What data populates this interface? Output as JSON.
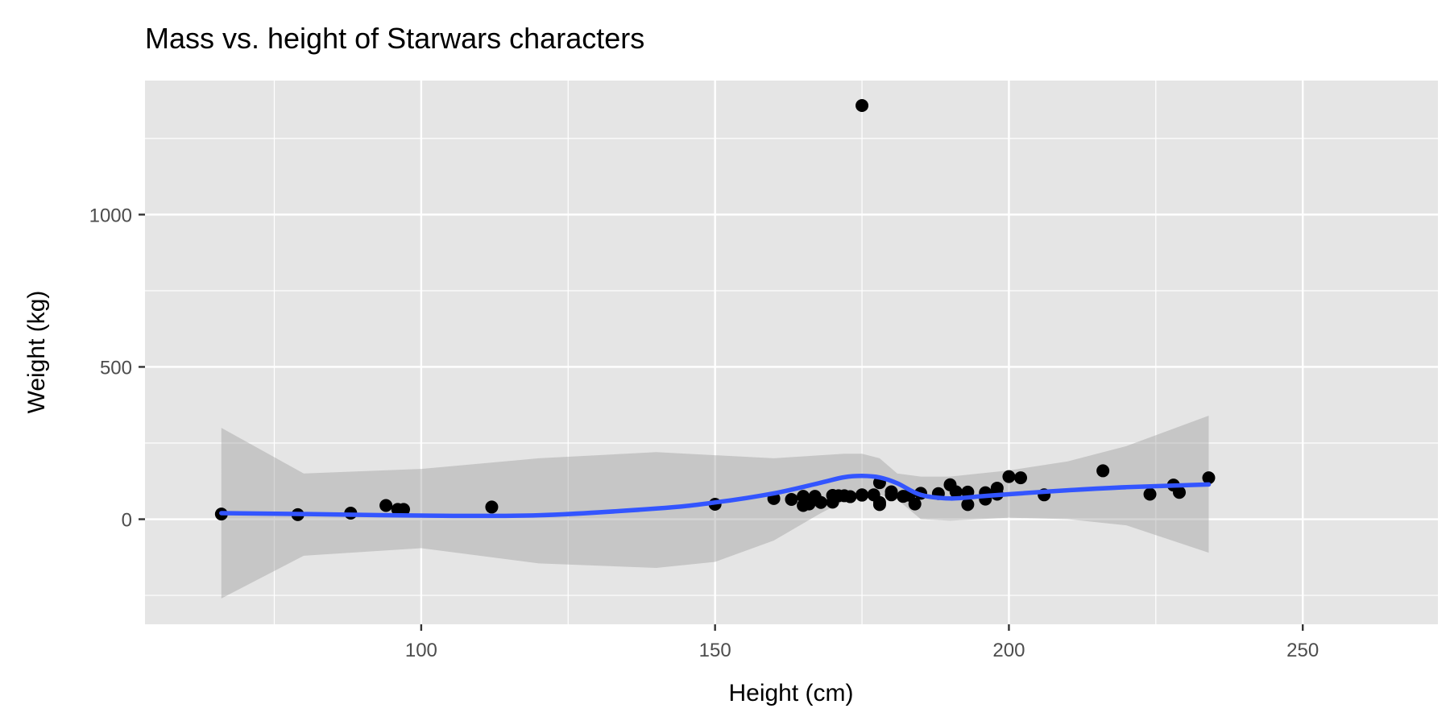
{
  "chart_data": {
    "type": "scatter",
    "title": "Mass vs. height of Starwars characters",
    "xlabel": "Height (cm)",
    "ylabel": "Weight (kg)",
    "xlim": [
      53,
      273
    ],
    "ylim": [
      -345,
      1440
    ],
    "x_ticks": [
      100,
      150,
      200,
      250
    ],
    "x_minor": [
      75,
      125,
      175,
      225
    ],
    "y_ticks": [
      0,
      500,
      1000
    ],
    "y_minor": [
      -250,
      250,
      750,
      1250
    ],
    "grid": true,
    "legend": "none",
    "colors": {
      "panel": "#e5e5e5",
      "grid": "#ffffff",
      "point": "#000000",
      "smooth": "#3355ff",
      "ribbon": "#999999"
    },
    "points": [
      {
        "x": 66,
        "y": 17
      },
      {
        "x": 79,
        "y": 15
      },
      {
        "x": 88,
        "y": 20
      },
      {
        "x": 94,
        "y": 45
      },
      {
        "x": 96,
        "y": 32
      },
      {
        "x": 97,
        "y": 32
      },
      {
        "x": 112,
        "y": 40
      },
      {
        "x": 150,
        "y": 49
      },
      {
        "x": 160,
        "y": 68
      },
      {
        "x": 163,
        "y": 65
      },
      {
        "x": 165,
        "y": 75
      },
      {
        "x": 165,
        "y": 45
      },
      {
        "x": 166,
        "y": 50
      },
      {
        "x": 167,
        "y": 75
      },
      {
        "x": 168,
        "y": 55
      },
      {
        "x": 170,
        "y": 78
      },
      {
        "x": 170,
        "y": 56
      },
      {
        "x": 171,
        "y": 77
      },
      {
        "x": 172,
        "y": 77
      },
      {
        "x": 173,
        "y": 74
      },
      {
        "x": 175,
        "y": 1358
      },
      {
        "x": 175,
        "y": 79
      },
      {
        "x": 175,
        "y": 80
      },
      {
        "x": 177,
        "y": 80
      },
      {
        "x": 178,
        "y": 120
      },
      {
        "x": 178,
        "y": 55
      },
      {
        "x": 178,
        "y": 48
      },
      {
        "x": 180,
        "y": 80
      },
      {
        "x": 180,
        "y": 90
      },
      {
        "x": 182,
        "y": 75
      },
      {
        "x": 183,
        "y": 79
      },
      {
        "x": 184,
        "y": 50
      },
      {
        "x": 185,
        "y": 85
      },
      {
        "x": 188,
        "y": 84
      },
      {
        "x": 190,
        "y": 113
      },
      {
        "x": 191,
        "y": 90
      },
      {
        "x": 193,
        "y": 48
      },
      {
        "x": 193,
        "y": 89
      },
      {
        "x": 196,
        "y": 66
      },
      {
        "x": 196,
        "y": 87
      },
      {
        "x": 198,
        "y": 82
      },
      {
        "x": 198,
        "y": 102
      },
      {
        "x": 200,
        "y": 140
      },
      {
        "x": 202,
        "y": 136
      },
      {
        "x": 206,
        "y": 80
      },
      {
        "x": 216,
        "y": 159
      },
      {
        "x": 224,
        "y": 82
      },
      {
        "x": 228,
        "y": 112
      },
      {
        "x": 229,
        "y": 88
      },
      {
        "x": 234,
        "y": 136
      }
    ],
    "smooth": {
      "x": [
        66,
        80,
        100,
        120,
        140,
        150,
        160,
        168,
        172,
        175,
        178,
        181,
        185,
        190,
        195,
        200,
        210,
        220,
        234
      ],
      "y": [
        20,
        17,
        12,
        13,
        35,
        55,
        85,
        120,
        138,
        142,
        137,
        118,
        80,
        68,
        75,
        82,
        95,
        105,
        114
      ],
      "ymin": [
        -260,
        -120,
        -95,
        -145,
        -160,
        -140,
        -70,
        20,
        60,
        75,
        80,
        65,
        0,
        -5,
        0,
        5,
        0,
        -20,
        -110
      ],
      "ymax": [
        300,
        150,
        165,
        200,
        220,
        210,
        200,
        210,
        215,
        215,
        200,
        150,
        140,
        140,
        150,
        160,
        190,
        240,
        340
      ]
    }
  }
}
